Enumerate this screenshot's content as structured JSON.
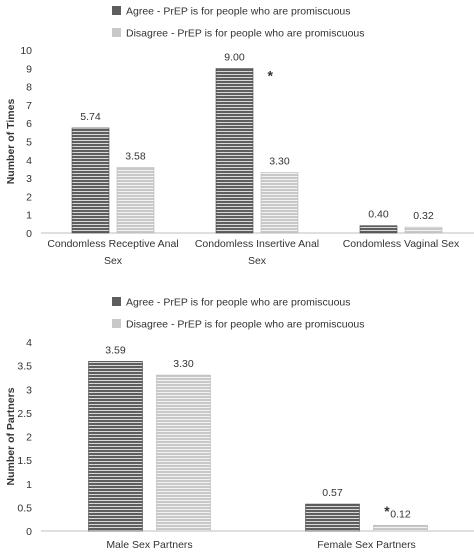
{
  "colors": {
    "agree_fill": "#5e5e5e",
    "agree_stripe": "#d8d8d8",
    "disagree_fill": "#c8c8c8",
    "disagree_stripe": "#f2f2f2",
    "axis": "#bfbfbf",
    "text": "#333333"
  },
  "chart_data": [
    {
      "type": "bar",
      "title": "",
      "ylabel": "Number of Times",
      "xlabel": "",
      "ylim": [
        0,
        10
      ],
      "yticks": [
        "0",
        "1",
        "2",
        "3",
        "4",
        "5",
        "6",
        "7",
        "8",
        "9",
        "10"
      ],
      "grid": false,
      "legend_position": "top-center",
      "categories": [
        [
          "Condomless Receptive Anal",
          "Sex"
        ],
        [
          "Condomless Insertive Anal",
          "Sex"
        ],
        [
          "Condomless Vaginal Sex"
        ]
      ],
      "series": [
        {
          "name": "Agree - PrEP is for people who are promiscuous",
          "values": [
            5.74,
            9.0,
            0.4
          ],
          "labels": [
            "5.74",
            "9.00",
            "0.40"
          ]
        },
        {
          "name": "Disagree - PrEP is for people who are promiscuous",
          "values": [
            3.58,
            3.3,
            0.32
          ],
          "labels": [
            "3.58",
            "3.30",
            "0.32"
          ]
        }
      ],
      "annotations": [
        {
          "category_index": 1,
          "text": "*"
        }
      ]
    },
    {
      "type": "bar",
      "title": "",
      "ylabel": "Number of Partners",
      "xlabel": "",
      "ylim": [
        0,
        4
      ],
      "yticks": [
        "0",
        "0.5",
        "1",
        "1.5",
        "2",
        "2.5",
        "3",
        "3.5",
        "4"
      ],
      "grid": false,
      "legend_position": "top-center",
      "categories": [
        [
          "Male Sex Partners"
        ],
        [
          "Female Sex Partners"
        ]
      ],
      "series": [
        {
          "name": "Agree - PrEP is for people who are promiscuous",
          "values": [
            3.59,
            0.57
          ],
          "labels": [
            "3.59",
            "0.57"
          ]
        },
        {
          "name": "Disagree - PrEP is for people who are promiscuous",
          "values": [
            3.3,
            0.12
          ],
          "labels": [
            "3.30",
            "0.12"
          ]
        }
      ],
      "annotations": [
        {
          "category_index": 1,
          "text": "*"
        }
      ]
    }
  ]
}
